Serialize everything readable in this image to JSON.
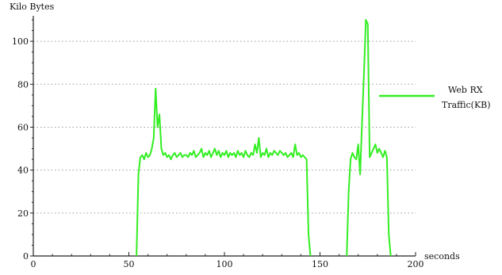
{
  "chart_data": {
    "type": "line",
    "title": "",
    "xlabel": "seconds",
    "ylabel": "Kilo Bytes",
    "xlim": [
      0,
      200
    ],
    "ylim": [
      0,
      110
    ],
    "x_ticks": [
      0,
      50,
      100,
      150,
      200
    ],
    "y_ticks": [
      0,
      20,
      40,
      60,
      80,
      100
    ],
    "grid": "horizontal dotted",
    "legend_position": "right",
    "series": [
      {
        "name": "Web RX Traffic(KB)",
        "legend_line1": "Web RX",
        "legend_line2": "Traffic(KB)",
        "color": "#33ee22",
        "points": [
          [
            54,
            0
          ],
          [
            55,
            38
          ],
          [
            56,
            46
          ],
          [
            57,
            47
          ],
          [
            58,
            45
          ],
          [
            59,
            48
          ],
          [
            60,
            46
          ],
          [
            61,
            47
          ],
          [
            62,
            50
          ],
          [
            63,
            55
          ],
          [
            64,
            78
          ],
          [
            65,
            60
          ],
          [
            66,
            66
          ],
          [
            67,
            50
          ],
          [
            68,
            47
          ],
          [
            69,
            48
          ],
          [
            70,
            46
          ],
          [
            71,
            47
          ],
          [
            72,
            45
          ],
          [
            73,
            47
          ],
          [
            74,
            48
          ],
          [
            75,
            46
          ],
          [
            76,
            47
          ],
          [
            77,
            48
          ],
          [
            78,
            46
          ],
          [
            79,
            47
          ],
          [
            80,
            47
          ],
          [
            81,
            46
          ],
          [
            82,
            48
          ],
          [
            83,
            47
          ],
          [
            84,
            49
          ],
          [
            85,
            46
          ],
          [
            86,
            47
          ],
          [
            87,
            48
          ],
          [
            88,
            50
          ],
          [
            89,
            46
          ],
          [
            90,
            48
          ],
          [
            91,
            47
          ],
          [
            92,
            49
          ],
          [
            93,
            46
          ],
          [
            94,
            48
          ],
          [
            95,
            50
          ],
          [
            96,
            47
          ],
          [
            97,
            49
          ],
          [
            98,
            46
          ],
          [
            99,
            48
          ],
          [
            100,
            47
          ],
          [
            101,
            49
          ],
          [
            102,
            46
          ],
          [
            103,
            48
          ],
          [
            104,
            47
          ],
          [
            105,
            48
          ],
          [
            106,
            46
          ],
          [
            107,
            49
          ],
          [
            108,
            47
          ],
          [
            109,
            48
          ],
          [
            110,
            46
          ],
          [
            111,
            49
          ],
          [
            112,
            47
          ],
          [
            113,
            46
          ],
          [
            114,
            48
          ],
          [
            115,
            47
          ],
          [
            116,
            52
          ],
          [
            117,
            48
          ],
          [
            118,
            55
          ],
          [
            119,
            46
          ],
          [
            120,
            48
          ],
          [
            121,
            47
          ],
          [
            122,
            50
          ],
          [
            123,
            46
          ],
          [
            124,
            48
          ],
          [
            125,
            47
          ],
          [
            126,
            49
          ],
          [
            127,
            48
          ],
          [
            128,
            47
          ],
          [
            129,
            49
          ],
          [
            130,
            48
          ],
          [
            131,
            47
          ],
          [
            132,
            48
          ],
          [
            133,
            46
          ],
          [
            134,
            47
          ],
          [
            135,
            48
          ],
          [
            136,
            46
          ],
          [
            137,
            52
          ],
          [
            138,
            47
          ],
          [
            139,
            48
          ],
          [
            140,
            46
          ],
          [
            141,
            47
          ],
          [
            142,
            46
          ],
          [
            143,
            45
          ],
          [
            144,
            10
          ],
          [
            145,
            0
          ],
          [
            null,
            null
          ],
          [
            164,
            0
          ],
          [
            165,
            30
          ],
          [
            166,
            45
          ],
          [
            167,
            48
          ],
          [
            168,
            46
          ],
          [
            169,
            45
          ],
          [
            170,
            52
          ],
          [
            171,
            38
          ],
          [
            172,
            62
          ],
          [
            173,
            85
          ],
          [
            174,
            110
          ],
          [
            175,
            108
          ],
          [
            176,
            46
          ],
          [
            177,
            48
          ],
          [
            178,
            50
          ],
          [
            179,
            52
          ],
          [
            180,
            48
          ],
          [
            181,
            50
          ],
          [
            182,
            48
          ],
          [
            183,
            46
          ],
          [
            184,
            49
          ],
          [
            185,
            46
          ],
          [
            186,
            10
          ],
          [
            187,
            0
          ]
        ]
      }
    ]
  }
}
